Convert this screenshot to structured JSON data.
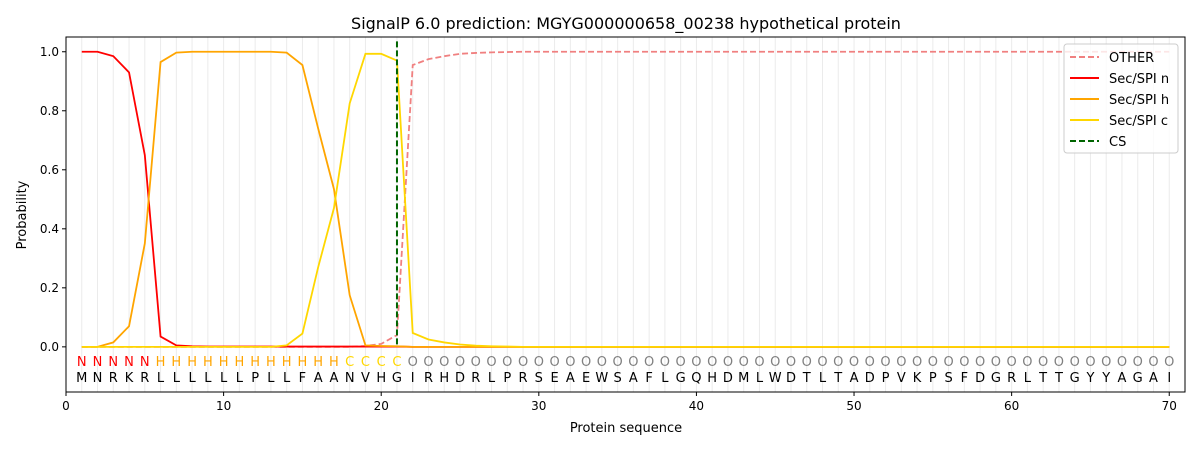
{
  "chart_data": {
    "type": "line",
    "title": "SignalP 6.0 prediction: MGYG000000658_00238 hypothetical protein",
    "xlabel": "Protein sequence",
    "ylabel": "Probability",
    "xlim": [
      0,
      71
    ],
    "ylim": [
      -0.153,
      1.05
    ],
    "xticks": [
      0,
      10,
      20,
      30,
      40,
      50,
      60,
      70
    ],
    "yticks": [
      0.0,
      0.2,
      0.4,
      0.6,
      0.8,
      1.0
    ],
    "ytick_labels": [
      "0.0",
      "0.2",
      "0.4",
      "0.6",
      "0.8",
      "1.0"
    ],
    "legend_position": "top-right",
    "vertical_grid": "each residue",
    "sequence": "MNRKRLLLLLLPLLFAANVHGIRHDRLPRSEAEWSAFLGQHDMLWDTLTADPVKPSFDGRLTTGYYAGAI",
    "region_labels": "NNNNNHHHHHHHHHHHHCCCCOOOOOOOOOOOOOOOOOOOOOOOOOOOOOOOOOOOOOOOOOOOOOOOOO",
    "region_label_colors": {
      "N": "#ff0000",
      "H": "#ffa500",
      "C": "#ffd700",
      "O": "#808080"
    },
    "cleavage_site": 21,
    "series": [
      {
        "name": "OTHER",
        "color": "#f08080",
        "dash": true,
        "values": [
          0,
          0,
          0,
          0,
          0,
          0,
          0,
          0,
          0,
          0,
          0,
          0,
          0,
          0,
          0,
          0,
          0,
          0,
          0.003,
          0.01,
          0.04,
          0.955,
          0.975,
          0.985,
          0.993,
          0.996,
          0.998,
          0.999,
          1,
          1,
          1,
          1,
          1,
          1,
          1,
          1,
          1,
          1,
          1,
          1,
          1,
          1,
          1,
          1,
          1,
          1,
          1,
          1,
          1,
          1,
          1,
          1,
          1,
          1,
          1,
          1,
          1,
          1,
          1,
          1,
          1,
          1,
          1,
          1,
          1,
          1,
          1,
          1,
          1,
          1
        ]
      },
      {
        "name": "Sec/SPI n",
        "color": "#ff0000",
        "dash": false,
        "values": [
          1.0,
          1.0,
          0.985,
          0.93,
          0.65,
          0.035,
          0.005,
          0.002,
          0.001,
          0.001,
          0.001,
          0.001,
          0.001,
          0.001,
          0.001,
          0.001,
          0.001,
          0.001,
          0.001,
          0.001,
          0.001,
          0,
          0,
          0,
          0,
          0,
          0,
          0,
          0,
          0,
          0,
          0,
          0,
          0,
          0,
          0,
          0,
          0,
          0,
          0,
          0,
          0,
          0,
          0,
          0,
          0,
          0,
          0,
          0,
          0,
          0,
          0,
          0,
          0,
          0,
          0,
          0,
          0,
          0,
          0,
          0,
          0,
          0,
          0,
          0,
          0,
          0,
          0,
          0,
          0
        ]
      },
      {
        "name": "Sec/SPI h",
        "color": "#ffa500",
        "dash": false,
        "values": [
          0,
          0,
          0.015,
          0.07,
          0.35,
          0.965,
          0.997,
          1,
          1,
          1,
          1,
          1,
          1,
          0.997,
          0.955,
          0.74,
          0.535,
          0.175,
          0.005,
          0.003,
          0.002,
          0,
          0,
          0,
          0,
          0,
          0,
          0,
          0,
          0,
          0,
          0,
          0,
          0,
          0,
          0,
          0,
          0,
          0,
          0,
          0,
          0,
          0,
          0,
          0,
          0,
          0,
          0,
          0,
          0,
          0,
          0,
          0,
          0,
          0,
          0,
          0,
          0,
          0,
          0,
          0,
          0,
          0,
          0,
          0,
          0,
          0,
          0,
          0,
          0
        ]
      },
      {
        "name": "Sec/SPI c",
        "color": "#ffd700",
        "dash": false,
        "values": [
          0,
          0,
          0,
          0,
          0,
          0,
          0,
          0,
          0,
          0,
          0,
          0,
          0,
          0.005,
          0.045,
          0.27,
          0.47,
          0.825,
          0.993,
          0.993,
          0.97,
          0.047,
          0.025,
          0.015,
          0.008,
          0.004,
          0.002,
          0.001,
          0,
          0,
          0,
          0,
          0,
          0,
          0,
          0,
          0,
          0,
          0,
          0,
          0,
          0,
          0,
          0,
          0,
          0,
          0,
          0,
          0,
          0,
          0,
          0,
          0,
          0,
          0,
          0,
          0,
          0,
          0,
          0,
          0,
          0,
          0,
          0,
          0,
          0,
          0,
          0,
          0,
          0
        ]
      },
      {
        "name": "CS",
        "color": "#006400",
        "dash": true,
        "vertical_at": 21
      }
    ]
  }
}
